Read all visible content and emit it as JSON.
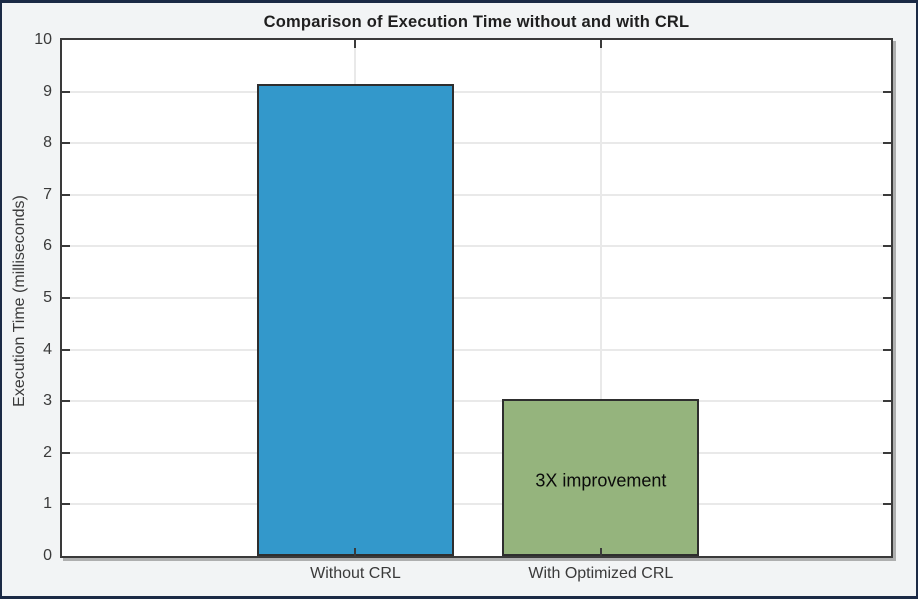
{
  "window": {
    "frame_color": "#1B2A45",
    "background_color": "#F2F4F5"
  },
  "chart_data": {
    "type": "bar",
    "title": "Comparison of Execution Time without and with CRL",
    "xlabel": "",
    "ylabel": "Execution Time (milliseconds)",
    "categories": [
      "Without CRL",
      "With Optimized CRL"
    ],
    "values": [
      9.15,
      3.05
    ],
    "bar_colors": [
      "#3398CB",
      "#95B47D"
    ],
    "bar_edge_color": "#2E2E2E",
    "ylim": [
      0,
      10
    ],
    "yticks": [
      0,
      1,
      2,
      3,
      4,
      5,
      6,
      7,
      8,
      9,
      10
    ],
    "grid": true,
    "grid_color": "#E9E9E9",
    "plot_background": "#FFFFFF",
    "axis_color": "#3A3A3A",
    "annotation": {
      "text": "3X improvement",
      "bar_index": 1,
      "y_value": 1.45
    }
  }
}
